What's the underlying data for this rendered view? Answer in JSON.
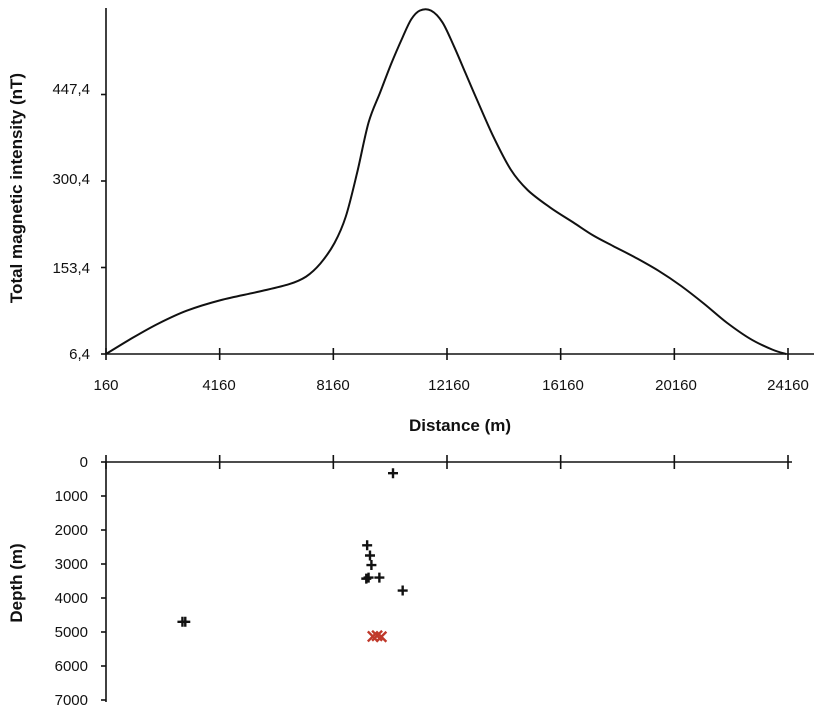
{
  "chart_data": [
    {
      "type": "line",
      "xlabel": "Distance (m)",
      "ylabel": "Total magnetic intensity (nT)",
      "xlim": [
        160,
        24160
      ],
      "ylim": [
        6.4,
        594.4
      ],
      "x_ticks": [
        "160",
        "4160",
        "8160",
        "12160",
        "16160",
        "20160",
        "24160"
      ],
      "y_ticks": [
        "6,4",
        "153,4",
        "300,4",
        "447,4"
      ],
      "x_tick_values": [
        160,
        4160,
        8160,
        12160,
        16160,
        20160,
        24160
      ],
      "y_tick_values": [
        6.4,
        153.4,
        300.4,
        447.4
      ],
      "grid": false,
      "legend": "none",
      "line_color": "#111111",
      "series": [
        {
          "x": [
            160,
            1100,
            2000,
            3000,
            4200,
            5500,
            6600,
            7200,
            7700,
            8200,
            8600,
            9000,
            9400,
            9800,
            10200,
            10600,
            10900,
            11200,
            11600,
            12000,
            12400,
            12800,
            13200,
            13800,
            14400,
            15000,
            15800,
            16600,
            17300,
            18000,
            18800,
            19600,
            20400,
            21200,
            22000,
            22800,
            23600,
            24100
          ],
          "y": [
            6.4,
            34,
            58,
            80,
            98,
            112,
            125,
            138,
            160,
            195,
            240,
            315,
            400,
            450,
            500,
            545,
            575,
            590,
            590,
            570,
            530,
            485,
            440,
            375,
            320,
            285,
            255,
            230,
            208,
            190,
            170,
            148,
            122,
            92,
            60,
            33,
            14,
            6.4
          ]
        }
      ]
    },
    {
      "type": "scatter",
      "xlabel": "",
      "ylabel": "Depth (m)",
      "xlim": [
        160,
        24160
      ],
      "ylim": [
        0,
        7000
      ],
      "y_inverted": true,
      "y_ticks": [
        "0",
        "1000",
        "2000",
        "3000",
        "4000",
        "5000",
        "6000",
        "7000"
      ],
      "y_tick_values": [
        0,
        1000,
        2000,
        3000,
        4000,
        5000,
        6000,
        7000
      ],
      "x_tick_values": [
        160,
        4160,
        8160,
        12160,
        16160,
        20160,
        24160
      ],
      "grid": false,
      "legend": "none",
      "series": [
        {
          "marker": "plus",
          "color": "#111111",
          "x": [
            10260,
            9350,
            9450,
            9500,
            9400,
            9320,
            9780,
            10600,
            2950,
            2850
          ],
          "y": [
            330,
            2450,
            2750,
            3030,
            3400,
            3430,
            3400,
            3780,
            4700,
            4700
          ]
        },
        {
          "marker": "x",
          "color": "#c0392b",
          "x": [
            9550,
            9700,
            9850
          ],
          "y": [
            5130,
            5110,
            5140
          ]
        }
      ]
    }
  ]
}
